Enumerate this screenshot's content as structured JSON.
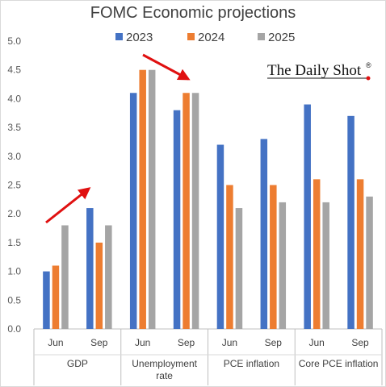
{
  "chart_data": {
    "type": "bar",
    "title": "FOMC Economic projections",
    "watermark": "The Daily Shot",
    "watermark_mark": "®",
    "ylim": [
      0,
      5
    ],
    "yticks": [
      "0.0",
      "0.5",
      "1.0",
      "1.5",
      "2.0",
      "2.5",
      "3.0",
      "3.5",
      "4.0",
      "4.5",
      "5.0"
    ],
    "legend_position": "top",
    "grid": false,
    "groups": [
      {
        "label": "GDP",
        "categories": [
          "Jun",
          "Sep"
        ]
      },
      {
        "label": "Unemployment rate",
        "categories": [
          "Jun",
          "Sep"
        ]
      },
      {
        "label": "PCE inflation",
        "categories": [
          "Jun",
          "Sep"
        ]
      },
      {
        "label": "Core PCE inflation",
        "categories": [
          "Jun",
          "Sep"
        ]
      }
    ],
    "series": [
      {
        "name": "2023",
        "color": "#4472C4",
        "values": [
          1.0,
          2.1,
          4.1,
          3.8,
          3.2,
          3.3,
          3.9,
          3.7
        ]
      },
      {
        "name": "2024",
        "color": "#ED7D31",
        "values": [
          1.1,
          1.5,
          4.5,
          4.1,
          2.5,
          2.5,
          2.6,
          2.6
        ]
      },
      {
        "name": "2025",
        "color": "#A5A5A5",
        "values": [
          1.8,
          1.8,
          4.5,
          4.1,
          2.1,
          2.2,
          2.2,
          2.3
        ]
      }
    ],
    "annotations": [
      {
        "type": "arrow",
        "color": "#E01010",
        "direction": "up",
        "group": "GDP"
      },
      {
        "type": "arrow",
        "color": "#E01010",
        "direction": "down",
        "group": "Unemployment rate"
      }
    ]
  }
}
